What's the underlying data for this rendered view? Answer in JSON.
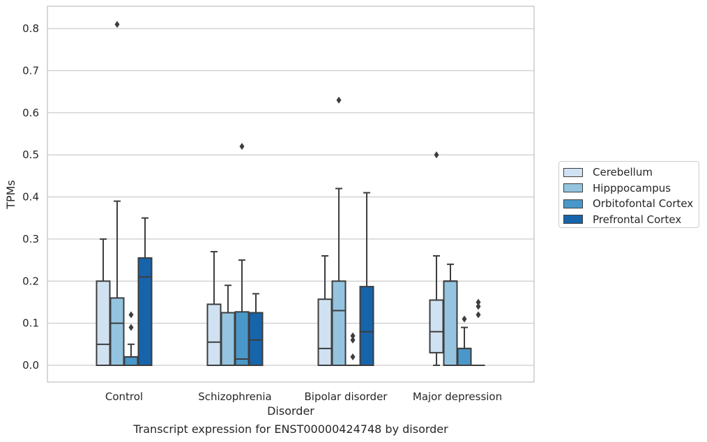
{
  "chart_data": {
    "type": "box",
    "xlabel": "Disorder",
    "ylabel": "TPMs",
    "caption": "Transcript expression for ENST00000424748 by disorder",
    "ylim": [
      -0.04,
      0.85
    ],
    "yticks": [
      "0.0",
      "0.1",
      "0.2",
      "0.3",
      "0.4",
      "0.5",
      "0.6",
      "0.7",
      "0.8"
    ],
    "grid": "horizontal",
    "legend_position": "right",
    "categories": [
      "Control",
      "Schizophrenia",
      "Bipolar disorder",
      "Major depression"
    ],
    "series": [
      {
        "name": "Cerebellum",
        "color": "#d0e1f2",
        "boxes": [
          {
            "min": 0,
            "q1": 0,
            "median": 0.05,
            "q3": 0.2,
            "max": 0.3,
            "outliers": []
          },
          {
            "min": 0,
            "q1": 0,
            "median": 0.055,
            "q3": 0.145,
            "max": 0.27,
            "outliers": []
          },
          {
            "min": 0,
            "q1": 0,
            "median": 0.04,
            "q3": 0.157,
            "max": 0.26,
            "outliers": []
          },
          {
            "min": 0,
            "q1": 0.03,
            "median": 0.08,
            "q3": 0.155,
            "max": 0.26,
            "outliers": [
              0.5
            ]
          }
        ]
      },
      {
        "name": "Hipppocampus",
        "color": "#94c4df",
        "boxes": [
          {
            "min": 0,
            "q1": 0,
            "median": 0.1,
            "q3": 0.16,
            "max": 0.39,
            "outliers": [
              0.81
            ]
          },
          {
            "min": 0,
            "q1": 0,
            "median": 0.125,
            "q3": 0.125,
            "max": 0.19,
            "outliers": []
          },
          {
            "min": 0,
            "q1": 0,
            "median": 0.13,
            "q3": 0.2,
            "max": 0.42,
            "outliers": [
              0.63
            ]
          },
          {
            "min": 0,
            "q1": 0,
            "median": 0.2,
            "q3": 0.2,
            "max": 0.24,
            "outliers": []
          }
        ]
      },
      {
        "name": "Orbitofontal Cortex",
        "color": "#4a98c9",
        "boxes": [
          {
            "min": 0,
            "q1": 0,
            "median": 0.02,
            "q3": 0.02,
            "max": 0.05,
            "outliers": [
              0.09,
              0.12
            ]
          },
          {
            "min": 0,
            "q1": 0,
            "median": 0.015,
            "q3": 0.127,
            "max": 0.25,
            "outliers": [
              0.52
            ]
          },
          {
            "min": 0,
            "q1": 0,
            "median": 0,
            "q3": 0,
            "max": 0,
            "outliers": [
              0.02,
              0.06,
              0.07
            ]
          },
          {
            "min": 0,
            "q1": 0,
            "median": 0.04,
            "q3": 0.04,
            "max": 0.09,
            "outliers": [
              0.11
            ]
          }
        ]
      },
      {
        "name": "Prefrontal Cortex",
        "color": "#1764ab",
        "boxes": [
          {
            "min": 0,
            "q1": 0,
            "median": 0.21,
            "q3": 0.255,
            "max": 0.35,
            "outliers": []
          },
          {
            "min": 0,
            "q1": 0,
            "median": 0.06,
            "q3": 0.125,
            "max": 0.17,
            "outliers": []
          },
          {
            "min": 0,
            "q1": 0,
            "median": 0.08,
            "q3": 0.187,
            "max": 0.41,
            "outliers": []
          },
          {
            "min": 0,
            "q1": 0,
            "median": 0,
            "q3": 0,
            "max": 0,
            "outliers": [
              0.12,
              0.14,
              0.15
            ]
          }
        ]
      }
    ]
  }
}
